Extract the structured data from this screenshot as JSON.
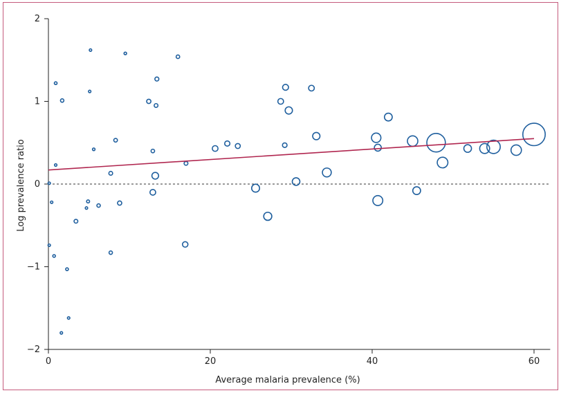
{
  "chart_data": {
    "type": "scatter",
    "title": "",
    "xlabel": "Average malaria prevalence (%)",
    "ylabel": "Log prevalence ratio",
    "xlim": [
      0,
      62
    ],
    "ylim": [
      -2,
      2
    ],
    "x_ticks": [
      "0",
      "20",
      "40",
      "60"
    ],
    "y_ticks": [
      "2",
      "1",
      "0",
      "−1",
      "−2"
    ],
    "reference_line_y": 0,
    "colors": {
      "points": "#1f5f9e",
      "fit": "#b0264f",
      "frame": "#c45a7c",
      "axis": "#222222"
    },
    "regression_line": {
      "x": [
        0,
        60
      ],
      "y": [
        0.17,
        0.55
      ]
    },
    "points": [
      {
        "x": 0.1,
        "y": 0.01,
        "w": 1
      },
      {
        "x": 0.1,
        "y": -0.74,
        "w": 1
      },
      {
        "x": 0.4,
        "y": -0.22,
        "w": 1
      },
      {
        "x": 0.7,
        "y": -0.87,
        "w": 1.2
      },
      {
        "x": 0.9,
        "y": 0.23,
        "w": 1
      },
      {
        "x": 0.9,
        "y": 1.22,
        "w": 1.3
      },
      {
        "x": 1.6,
        "y": -1.8,
        "w": 1
      },
      {
        "x": 1.7,
        "y": 1.01,
        "w": 2
      },
      {
        "x": 2.3,
        "y": -1.03,
        "w": 1.3
      },
      {
        "x": 2.5,
        "y": -1.62,
        "w": 1
      },
      {
        "x": 3.4,
        "y": -0.45,
        "w": 2.5
      },
      {
        "x": 4.7,
        "y": -0.29,
        "w": 1
      },
      {
        "x": 4.9,
        "y": -0.21,
        "w": 1.5
      },
      {
        "x": 5.1,
        "y": 1.12,
        "w": 1
      },
      {
        "x": 5.2,
        "y": 1.62,
        "w": 1
      },
      {
        "x": 5.6,
        "y": 0.42,
        "w": 1.1
      },
      {
        "x": 6.2,
        "y": -0.26,
        "w": 2
      },
      {
        "x": 7.7,
        "y": -0.83,
        "w": 2
      },
      {
        "x": 7.7,
        "y": 0.13,
        "w": 2.5
      },
      {
        "x": 8.3,
        "y": 0.53,
        "w": 2.3
      },
      {
        "x": 8.8,
        "y": -0.23,
        "w": 3.2
      },
      {
        "x": 9.5,
        "y": 1.58,
        "w": 1.1
      },
      {
        "x": 12.4,
        "y": 1.0,
        "w": 3.3
      },
      {
        "x": 12.9,
        "y": 0.4,
        "w": 2.2
      },
      {
        "x": 12.9,
        "y": -0.1,
        "w": 6
      },
      {
        "x": 13.2,
        "y": 0.1,
        "w": 8.5
      },
      {
        "x": 13.3,
        "y": 0.95,
        "w": 2.5
      },
      {
        "x": 13.4,
        "y": 1.27,
        "w": 2.8
      },
      {
        "x": 16.0,
        "y": 1.54,
        "w": 2.2
      },
      {
        "x": 16.9,
        "y": -0.73,
        "w": 5.5
      },
      {
        "x": 17.0,
        "y": 0.25,
        "w": 2.5
      },
      {
        "x": 20.6,
        "y": 0.43,
        "w": 6
      },
      {
        "x": 22.1,
        "y": 0.49,
        "w": 5
      },
      {
        "x": 23.4,
        "y": 0.46,
        "w": 4.5
      },
      {
        "x": 25.6,
        "y": -0.05,
        "w": 12
      },
      {
        "x": 27.1,
        "y": -0.39,
        "w": 12.5
      },
      {
        "x": 28.7,
        "y": 1.0,
        "w": 6
      },
      {
        "x": 29.2,
        "y": 0.47,
        "w": 3.8
      },
      {
        "x": 29.3,
        "y": 1.17,
        "w": 6.5
      },
      {
        "x": 29.7,
        "y": 0.89,
        "w": 10
      },
      {
        "x": 30.6,
        "y": 0.03,
        "w": 11
      },
      {
        "x": 32.5,
        "y": 1.16,
        "w": 6
      },
      {
        "x": 33.1,
        "y": 0.58,
        "w": 10
      },
      {
        "x": 34.4,
        "y": 0.14,
        "w": 15
      },
      {
        "x": 40.5,
        "y": 0.56,
        "w": 17
      },
      {
        "x": 40.7,
        "y": -0.2,
        "w": 19
      },
      {
        "x": 40.7,
        "y": 0.44,
        "w": 9
      },
      {
        "x": 42.0,
        "y": 0.81,
        "w": 11.5
      },
      {
        "x": 45.0,
        "y": 0.52,
        "w": 21
      },
      {
        "x": 45.5,
        "y": -0.08,
        "w": 11.5
      },
      {
        "x": 47.9,
        "y": 0.5,
        "w": 68
      },
      {
        "x": 48.7,
        "y": 0.26,
        "w": 22
      },
      {
        "x": 51.8,
        "y": 0.43,
        "w": 11
      },
      {
        "x": 53.9,
        "y": 0.43,
        "w": 19
      },
      {
        "x": 55.0,
        "y": 0.45,
        "w": 35
      },
      {
        "x": 57.8,
        "y": 0.41,
        "w": 21
      },
      {
        "x": 60.0,
        "y": 0.6,
        "w": 100
      }
    ]
  }
}
